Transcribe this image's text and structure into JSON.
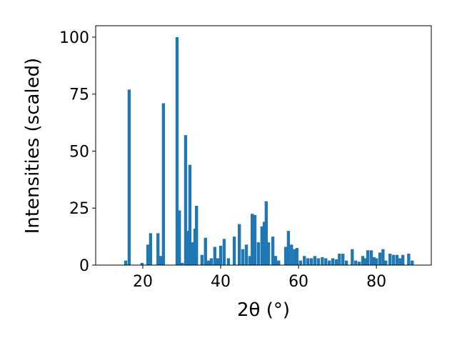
{
  "chart_data": {
    "type": "bar",
    "xlabel": "2θ (°)",
    "ylabel": "Intensities (scaled)",
    "color": "#1f77b4",
    "x": [
      15.6,
      16.5,
      19.8,
      21.3,
      22.0,
      23.9,
      24.6,
      25.3,
      28.8,
      29.4,
      30.1,
      31.0,
      31.6,
      32.1,
      32.8,
      33.4,
      33.8,
      35.2,
      36.1,
      36.9,
      37.6,
      38.5,
      39.3,
      40.0,
      40.9,
      42.0,
      43.5,
      44.8,
      45.7,
      46.6,
      47.5,
      48.1,
      48.8,
      49.7,
      50.6,
      51.2,
      51.7,
      52.3,
      53.4,
      54.1,
      54.9,
      56.7,
      57.4,
      58.2,
      59.0,
      59.6,
      60.5,
      61.5,
      62.4,
      63.3,
      64.2,
      65.1,
      66.1,
      67.0,
      67.9,
      68.8,
      69.7,
      70.5,
      71.4,
      72.3,
      73.8,
      74.7,
      75.6,
      76.5,
      77.1,
      77.8,
      78.7,
      79.4,
      80.0,
      80.9,
      81.7,
      82.4,
      83.5,
      84.4,
      85.3,
      86.1,
      86.8,
      88.3,
      89.2
    ],
    "values": [
      2,
      77,
      1,
      9,
      14,
      14,
      4,
      71,
      100,
      24,
      1,
      57,
      15,
      44,
      10,
      16,
      26,
      4.5,
      12,
      2,
      3,
      8,
      3,
      8.5,
      11.5,
      3,
      12.5,
      18,
      7,
      9,
      4,
      22.5,
      22,
      10,
      17,
      19,
      28,
      10,
      12.5,
      4,
      2,
      8,
      15,
      9,
      7,
      7.5,
      2,
      4,
      3,
      3,
      4,
      3,
      3.5,
      3,
      2,
      3,
      2.5,
      5,
      5,
      2,
      7,
      2,
      1.5,
      4,
      3,
      6.5,
      6.5,
      3.5,
      3,
      5.5,
      7,
      2,
      5,
      4.5,
      4.5,
      3,
      4.5,
      5,
      2
    ],
    "xlim": [
      7.9,
      94.1
    ],
    "ylim": [
      0,
      105
    ],
    "xticks": [
      20,
      40,
      60,
      80
    ],
    "yticks": [
      0,
      25,
      50,
      75,
      100
    ]
  }
}
